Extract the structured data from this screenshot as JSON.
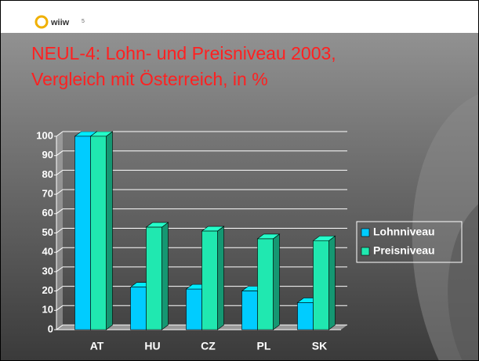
{
  "logo": "wiiw",
  "page_number": "5",
  "chart_data": {
    "type": "bar3d",
    "title": [
      "NEUL-4: Lohn- und Preisniveau 2003,",
      "Vergleich mit Österreich, in %"
    ],
    "categories": [
      "AT",
      "HU",
      "CZ",
      "PL",
      "SK"
    ],
    "series": [
      {
        "name": "Lohnniveau",
        "color": "#00ccff",
        "values": [
          100,
          22,
          21,
          20,
          14
        ]
      },
      {
        "name": "Preisniveau",
        "color": "#20e8b0",
        "values": [
          100,
          53,
          51,
          47,
          46
        ]
      }
    ],
    "ylim": [
      0,
      100
    ],
    "yticks": [
      0,
      10,
      20,
      30,
      40,
      50,
      60,
      70,
      80,
      90,
      100
    ],
    "grid": true,
    "legend": "right"
  }
}
